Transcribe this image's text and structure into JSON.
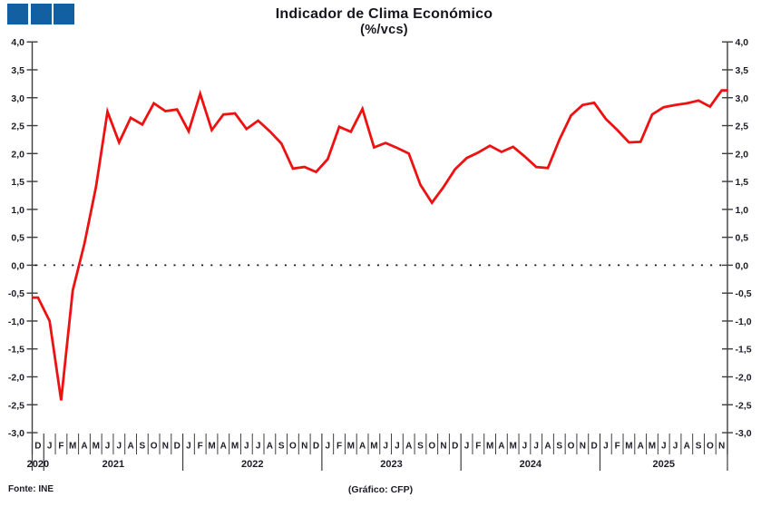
{
  "logo": {
    "squares": 3,
    "color": "#1260A2"
  },
  "title": "Indicador de Clima Económico",
  "subtitle": "(%/vcs)",
  "footer": {
    "source": "Fonte: INE",
    "credit": "(Gráfico: CFP)"
  },
  "colors": {
    "line": "#EE1111",
    "axis": "#3d3d3d",
    "text": "#1c1c28",
    "background": "#ffffff"
  },
  "y_axis": {
    "tick_labels": [
      "4,0",
      "3,5",
      "3,0",
      "2,5",
      "2,0",
      "1,5",
      "1,0",
      "0,5",
      "0,0",
      "-0,5",
      "-1,0",
      "-1,5",
      "-2,0",
      "-2,5",
      "-3,0"
    ],
    "tick_values": [
      4,
      3.5,
      3,
      2.5,
      2,
      1.5,
      1,
      0.5,
      0,
      -0.5,
      -1,
      -1.5,
      -2,
      -2.5,
      -3
    ]
  },
  "x_axis": {
    "month_letter_cycle": [
      "D",
      "J",
      "F",
      "M",
      "A",
      "M",
      "J",
      "J",
      "A",
      "S",
      "O",
      "N"
    ],
    "years": [
      {
        "label": "2020",
        "months": 1
      },
      {
        "label": "2021",
        "months": 12
      },
      {
        "label": "2022",
        "months": 12
      },
      {
        "label": "2023",
        "months": 12
      },
      {
        "label": "2024",
        "months": 12
      },
      {
        "label": "2025",
        "months": 11
      }
    ]
  },
  "chart_data": {
    "type": "line",
    "title": "Indicador de Clima Económico",
    "subtitle": "(%/vcs)",
    "ylabel": "",
    "xlabel": "",
    "ylim": [
      -3.0,
      4.0
    ],
    "y_step": 0.5,
    "grid": false,
    "zero_line": "dotted",
    "series_name": "Indicador de Clima Económico (%/vcs)",
    "start_month": "Dez 2020",
    "end_month": "Nov 2025",
    "values": [
      -0.58,
      -1.0,
      -2.42,
      -0.45,
      0.38,
      1.4,
      2.75,
      2.2,
      2.64,
      2.52,
      2.9,
      2.76,
      2.79,
      2.4,
      3.07,
      2.42,
      2.7,
      2.72,
      2.44,
      2.59,
      2.4,
      2.18,
      1.73,
      1.76,
      1.67,
      1.9,
      2.48,
      2.39,
      2.8,
      2.11,
      2.19,
      2.1,
      2.0,
      1.44,
      1.12,
      1.4,
      1.72,
      1.92,
      2.02,
      2.14,
      2.03,
      2.12,
      1.95,
      1.76,
      1.74,
      2.25,
      2.68,
      2.87,
      2.91,
      2.62,
      2.42,
      2.2,
      2.21,
      2.7,
      2.83,
      2.87,
      2.9,
      2.95,
      2.84,
      3.13
    ]
  }
}
